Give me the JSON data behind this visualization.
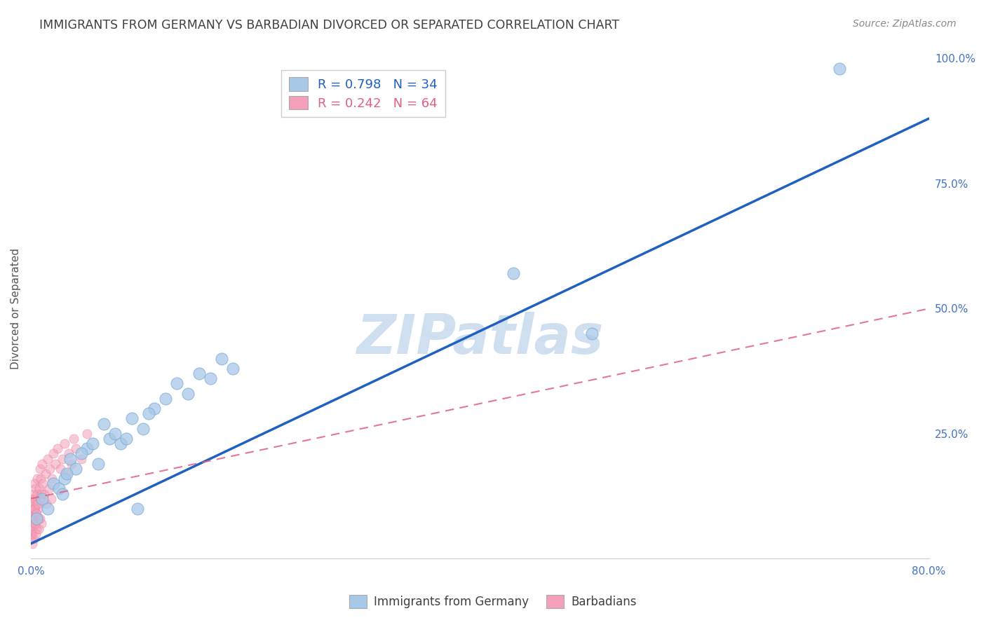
{
  "title": "IMMIGRANTS FROM GERMANY VS BARBADIAN DIVORCED OR SEPARATED CORRELATION CHART",
  "source": "Source: ZipAtlas.com",
  "ylabel": "Divorced or Separated",
  "r_blue": 0.798,
  "n_blue": 34,
  "r_pink": 0.242,
  "n_pink": 64,
  "blue_color": "#a8c8e8",
  "blue_edge": "#7aaed6",
  "pink_color": "#f4a0b8",
  "pink_edge": "#e87898",
  "line_blue_color": "#2060c0",
  "line_pink_color": "#e06080",
  "background_color": "#ffffff",
  "grid_color": "#c8c8d8",
  "axis_label_color": "#4472c4",
  "title_color": "#404040",
  "watermark_color": "#d0dff0",
  "blue_x": [
    0.5,
    1.0,
    1.5,
    2.0,
    2.5,
    3.0,
    3.5,
    4.0,
    5.0,
    6.0,
    7.0,
    8.0,
    9.0,
    10.0,
    11.0,
    12.0,
    13.0,
    14.0,
    15.0,
    16.0,
    17.0,
    18.0,
    4.5,
    7.5,
    2.8,
    5.5,
    10.5,
    3.2,
    6.5,
    8.5,
    43.0,
    50.0,
    72.0,
    9.5
  ],
  "blue_y": [
    8.0,
    12.0,
    10.0,
    15.0,
    14.0,
    16.0,
    20.0,
    18.0,
    22.0,
    19.0,
    24.0,
    23.0,
    28.0,
    26.0,
    30.0,
    32.0,
    35.0,
    33.0,
    37.0,
    36.0,
    40.0,
    38.0,
    21.0,
    25.0,
    13.0,
    23.0,
    29.0,
    17.0,
    27.0,
    24.0,
    57.0,
    45.0,
    98.0,
    10.0
  ],
  "pink_x": [
    0.05,
    0.08,
    0.1,
    0.12,
    0.15,
    0.18,
    0.2,
    0.22,
    0.25,
    0.28,
    0.3,
    0.35,
    0.38,
    0.4,
    0.42,
    0.45,
    0.48,
    0.5,
    0.55,
    0.6,
    0.65,
    0.7,
    0.75,
    0.8,
    0.85,
    0.9,
    0.95,
    1.0,
    1.1,
    1.2,
    1.3,
    1.4,
    1.5,
    1.6,
    1.7,
    1.8,
    1.9,
    2.0,
    2.2,
    2.4,
    2.6,
    2.8,
    3.0,
    3.2,
    3.4,
    3.6,
    3.8,
    4.0,
    4.5,
    5.0,
    0.06,
    0.09,
    0.13,
    0.16,
    0.21,
    0.26,
    0.32,
    0.37,
    0.43,
    0.52,
    0.62,
    0.72,
    0.82,
    0.92
  ],
  "pink_y": [
    8.0,
    5.0,
    10.0,
    7.0,
    12.0,
    9.0,
    11.0,
    6.0,
    13.0,
    8.0,
    15.0,
    10.0,
    7.0,
    12.0,
    9.0,
    14.0,
    6.0,
    11.0,
    13.0,
    16.0,
    10.0,
    8.0,
    14.0,
    18.0,
    12.0,
    16.0,
    7.0,
    19.0,
    15.0,
    13.0,
    17.0,
    11.0,
    20.0,
    14.0,
    18.0,
    12.0,
    16.0,
    21.0,
    19.0,
    22.0,
    18.0,
    20.0,
    23.0,
    17.0,
    21.0,
    19.0,
    24.0,
    22.0,
    20.0,
    25.0,
    4.0,
    6.0,
    3.0,
    5.0,
    8.0,
    4.0,
    10.0,
    7.0,
    5.0,
    9.0,
    11.0,
    6.0,
    8.0,
    13.0
  ],
  "blue_line_x0": 0.0,
  "blue_line_y0": 3.0,
  "blue_line_x1": 80.0,
  "blue_line_y1": 88.0,
  "pink_line_x0": 0.0,
  "pink_line_y0": 12.0,
  "pink_line_x1": 80.0,
  "pink_line_y1": 50.0,
  "xmin": 0.0,
  "xmax": 80.0,
  "ymin": 0.0,
  "ymax": 100.0
}
